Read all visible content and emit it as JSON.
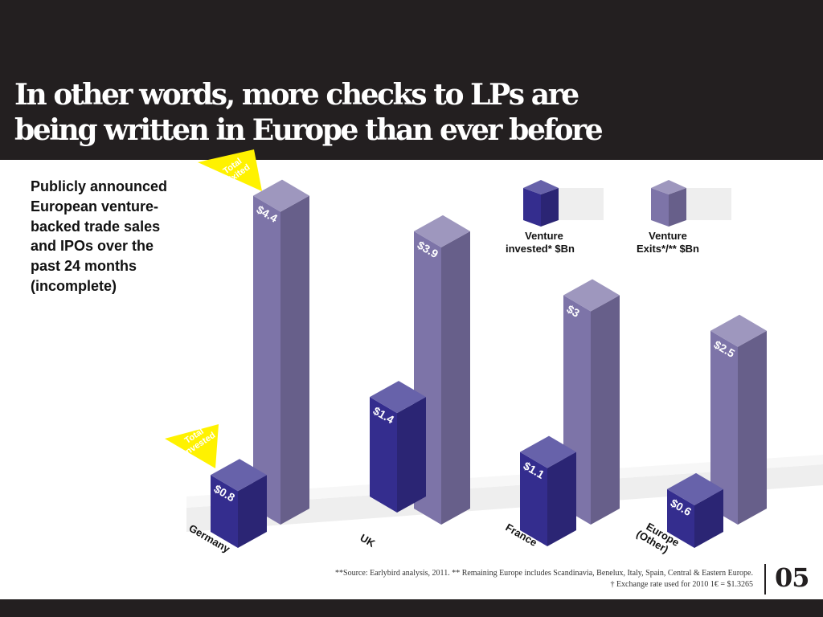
{
  "header": {
    "title": "In other words, more checks to LPs are\nbeing written  in Europe than ever before"
  },
  "subtitle": "Publicly announced European venture-backed trade sales and IPOs over the past 24 months (incomplete)",
  "chart_data": {
    "type": "bar",
    "style": "3d-isometric",
    "categories": [
      "Germany",
      "UK",
      "France",
      "Europe (Other)"
    ],
    "series": [
      {
        "name": "Venture invested* $Bn",
        "values": [
          0.8,
          1.4,
          1.1,
          0.6
        ],
        "labels": [
          "$0.8",
          "$1.4",
          "$1.1",
          "$0.6"
        ],
        "color": "#342d8e"
      },
      {
        "name": "Venture Exits*/** $Bn",
        "values": [
          4.4,
          3.9,
          3.0,
          2.5
        ],
        "labels": [
          "$4.4",
          "$3.9",
          "$3",
          "$2.5"
        ],
        "color": "#7d74a8"
      }
    ],
    "legend_position": "top-right",
    "annotations": [
      "Total Exited",
      "Total Invested"
    ],
    "grid": false
  },
  "legend": {
    "invested_line1": "Venture",
    "invested_line2": "invested* $Bn",
    "exits_line1": "Venture",
    "exits_line2": "Exits*/** $Bn"
  },
  "annotations": {
    "exited_line1": "Total",
    "exited_line2": "Exited",
    "invested_line1": "Total",
    "invested_line2": "Invested"
  },
  "colors": {
    "header": "#231f20",
    "invested": "#342d8e",
    "exits": "#7d74a8",
    "callout": "#fff200"
  },
  "footer": {
    "source_line1": "**Source: Earlybird analysis, 2011. ** Remaining Europe includes Scandinavia, Benelux, Italy, Spain, Central & Eastern Europe.",
    "source_line2": "† Exchange rate used for 2010 1€ = $1.3265",
    "page_number": "05"
  }
}
